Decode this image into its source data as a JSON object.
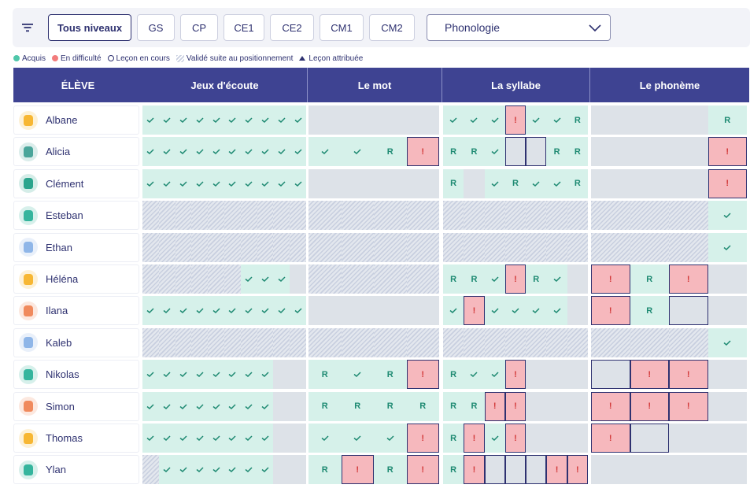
{
  "toolbar": {
    "levels": [
      "Tous niveaux",
      "GS",
      "CP",
      "CE1",
      "CE2",
      "CM1",
      "CM2"
    ],
    "active_level": "Tous niveaux",
    "domain_select": "Phonologie"
  },
  "legend": {
    "acquired": "Acquis",
    "difficulty": "En difficulté",
    "in_progress": "Leçon en cours",
    "validated": "Validé suite au positionnement",
    "assigned": "Leçon attribuée"
  },
  "colors": {
    "header": "#3e4392",
    "acquired": "#d6f1ea",
    "difficulty": "#f6b8bd",
    "empty": "#dde2e8",
    "text": "#2e3170",
    "check": "#1e8a72"
  },
  "header": {
    "student_col": "ÉLÈVE",
    "modules": [
      "Jeux d'écoute",
      "Le mot",
      "La syllabe",
      "Le phonème"
    ]
  },
  "students": [
    {
      "name": "Albane",
      "avatar_color": "#f7b733",
      "jeux": "aaaaaaaaaa",
      "mot": "eeee",
      "syl": "aaadaar",
      "pho": "eeer"
    },
    {
      "name": "Alicia",
      "avatar_color": "#4aa59a",
      "jeux": "aaaaaaaaaa",
      "mot": "aard",
      "syl": "rrapprr",
      "pho": "eeed"
    },
    {
      "name": "Clément",
      "avatar_color": "#2ca58d",
      "jeux": "aaaaaaaaaa",
      "mot": "eeee",
      "syl": "rearaar",
      "pho": "eeed"
    },
    {
      "name": "Esteban",
      "avatar_color": "#35b59d",
      "jeux": "vvvvvvvvvv",
      "mot": "vvvv",
      "syl": "vvvvvvv",
      "pho": "vvva"
    },
    {
      "name": "Ethan",
      "avatar_color": "#8fb6e8",
      "jeux": "vvvvvvvvvv",
      "mot": "vvvv",
      "syl": "vvvvvvv",
      "pho": "vvva"
    },
    {
      "name": "Héléna",
      "avatar_color": "#f7b733",
      "jeux": "vvvvvvaaae",
      "mot": "vvvv",
      "syl": "rradrae",
      "pho": "drde"
    },
    {
      "name": "Ilana",
      "avatar_color": "#f08a5d",
      "jeux": "aaaaaaaaaa",
      "mot": "eeee",
      "syl": "adaaaae",
      "pho": "drpe"
    },
    {
      "name": "Kaleb",
      "avatar_color": "#8fb6e8",
      "jeux": "vvvvvvvvvv",
      "mot": "vvvv",
      "syl": "vvvvvvv",
      "pho": "vvva"
    },
    {
      "name": "Nikolas",
      "avatar_color": "#35b59d",
      "jeux": "aaaaaaaaee",
      "mot": "rard",
      "syl": "raadeee",
      "pho": "pdde"
    },
    {
      "name": "Simon",
      "avatar_color": "#f08a5d",
      "jeux": "aaaaaaaaee",
      "mot": "rrrr",
      "syl": "rrddeee",
      "pho": "ddde"
    },
    {
      "name": "Thomas",
      "avatar_color": "#f7b733",
      "jeux": "aaaaaaaaee",
      "mot": "aaad",
      "syl": "rdadeee",
      "pho": "dpee"
    },
    {
      "name": "Ylan",
      "avatar_color": "#35b59d",
      "jeux": "vaaaaaaaee",
      "mot": "rdrd",
      "syl": "rdpppdd",
      "pho": "eeee"
    }
  ],
  "marks": {
    "difficulty": "!",
    "review": "R"
  }
}
